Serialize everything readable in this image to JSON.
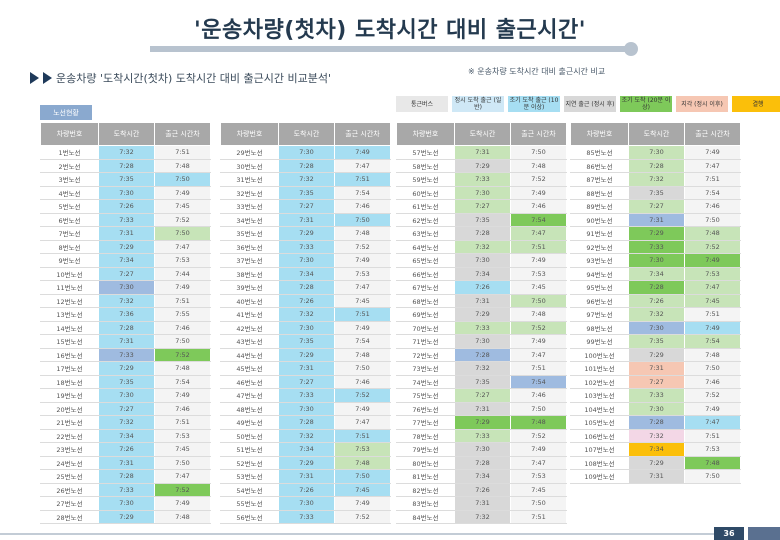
{
  "title": "'운송차량(첫차) 도착시간 대비 출근시간'",
  "subtitle": "운송차량 '도착시간(첫차) 도착시간 대비 출근시간 비교분석'",
  "note": "※ 운송차량 도착시간 대비 출근시간 비교",
  "section_tag": "노선현황",
  "legend": [
    {
      "label": "통근버스",
      "color": "#e8e8e8"
    },
    {
      "label": "정시 도착 출근 (일반)",
      "color": "#cfe8f6"
    },
    {
      "label": "조기 도착 출근 (10분 이상)",
      "color": "#a6def2"
    },
    {
      "label": "지연 출근 (정시 후)",
      "color": "#d8d8d8"
    },
    {
      "label": "조기 도착 (20분 이상)",
      "color": "#7ec95a"
    },
    {
      "label": "지각 (정시 이후)",
      "color": "#f6c7b3"
    },
    {
      "label": "결행",
      "color": "#fbbf0a"
    }
  ],
  "headers": [
    "차량번호",
    "도착시간",
    "출근 시간차"
  ],
  "tables": [
    {
      "rows": [
        [
          "1번노선",
          "7:32",
          "7:51"
        ],
        [
          "2번노선",
          "7:28",
          "7:48"
        ],
        [
          "3번노선",
          "7:35",
          "7:50"
        ],
        [
          "4번노선",
          "7:30",
          "7:49"
        ],
        [
          "5번노선",
          "7:26",
          "7:45"
        ],
        [
          "6번노선",
          "7:33",
          "7:52"
        ],
        [
          "7번노선",
          "7:31",
          "7:50"
        ],
        [
          "8번노선",
          "7:29",
          "7:47"
        ],
        [
          "9번노선",
          "7:34",
          "7:53"
        ],
        [
          "10번노선",
          "7:27",
          "7:44"
        ],
        [
          "11번노선",
          "7:30",
          "7:49"
        ],
        [
          "12번노선",
          "7:32",
          "7:51"
        ],
        [
          "13번노선",
          "7:36",
          "7:55"
        ],
        [
          "14번노선",
          "7:28",
          "7:46"
        ],
        [
          "15번노선",
          "7:31",
          "7:50"
        ],
        [
          "16번노선",
          "7:33",
          "7:52"
        ],
        [
          "17번노선",
          "7:29",
          "7:48"
        ],
        [
          "18번노선",
          "7:35",
          "7:54"
        ],
        [
          "19번노선",
          "7:30",
          "7:49"
        ],
        [
          "20번노선",
          "7:27",
          "7:46"
        ],
        [
          "21번노선",
          "7:32",
          "7:51"
        ],
        [
          "22번노선",
          "7:34",
          "7:53"
        ],
        [
          "23번노선",
          "7:26",
          "7:45"
        ],
        [
          "24번노선",
          "7:31",
          "7:50"
        ],
        [
          "25번노선",
          "7:28",
          "7:47"
        ],
        [
          "26번노선",
          "7:33",
          "7:52"
        ],
        [
          "27번노선",
          "7:30",
          "7:49"
        ],
        [
          "28번노선",
          "7:29",
          "7:48"
        ]
      ],
      "cls": [
        [
          "b",
          ""
        ],
        [
          "b",
          ""
        ],
        [
          "b",
          "b"
        ],
        [
          "b",
          ""
        ],
        [
          "b",
          ""
        ],
        [
          "b",
          ""
        ],
        [
          "b",
          "lgc"
        ],
        [
          "b",
          ""
        ],
        [
          "b",
          ""
        ],
        [
          "b",
          ""
        ],
        [
          "pb",
          ""
        ],
        [
          "b",
          ""
        ],
        [
          "b",
          ""
        ],
        [
          "b",
          ""
        ],
        [
          "b",
          ""
        ],
        [
          "pb",
          "dg"
        ],
        [
          "b",
          ""
        ],
        [
          "b",
          ""
        ],
        [
          "b",
          ""
        ],
        [
          "b",
          ""
        ],
        [
          "b",
          ""
        ],
        [
          "b",
          ""
        ],
        [
          "b",
          ""
        ],
        [
          "b",
          ""
        ],
        [
          "b",
          ""
        ],
        [
          "b",
          "dg"
        ],
        [
          "b",
          ""
        ],
        [
          "b",
          ""
        ]
      ]
    },
    {
      "rows": [
        [
          "29번노선",
          "7:30",
          "7:49"
        ],
        [
          "30번노선",
          "7:28",
          "7:47"
        ],
        [
          "31번노선",
          "7:32",
          "7:51"
        ],
        [
          "32번노선",
          "7:35",
          "7:54"
        ],
        [
          "33번노선",
          "7:27",
          "7:46"
        ],
        [
          "34번노선",
          "7:31",
          "7:50"
        ],
        [
          "35번노선",
          "7:29",
          "7:48"
        ],
        [
          "36번노선",
          "7:33",
          "7:52"
        ],
        [
          "37번노선",
          "7:30",
          "7:49"
        ],
        [
          "38번노선",
          "7:34",
          "7:53"
        ],
        [
          "39번노선",
          "7:28",
          "7:47"
        ],
        [
          "40번노선",
          "7:26",
          "7:45"
        ],
        [
          "41번노선",
          "7:32",
          "7:51"
        ],
        [
          "42번노선",
          "7:30",
          "7:49"
        ],
        [
          "43번노선",
          "7:35",
          "7:54"
        ],
        [
          "44번노선",
          "7:29",
          "7:48"
        ],
        [
          "45번노선",
          "7:31",
          "7:50"
        ],
        [
          "46번노선",
          "7:27",
          "7:46"
        ],
        [
          "47번노선",
          "7:33",
          "7:52"
        ],
        [
          "48번노선",
          "7:30",
          "7:49"
        ],
        [
          "49번노선",
          "7:28",
          "7:47"
        ],
        [
          "50번노선",
          "7:32",
          "7:51"
        ],
        [
          "51번노선",
          "7:34",
          "7:53"
        ],
        [
          "52번노선",
          "7:29",
          "7:48"
        ],
        [
          "53번노선",
          "7:31",
          "7:50"
        ],
        [
          "54번노선",
          "7:26",
          "7:45"
        ],
        [
          "55번노선",
          "7:30",
          "7:49"
        ],
        [
          "56번노선",
          "7:33",
          "7:52"
        ]
      ],
      "cls": [
        [
          "b",
          "b"
        ],
        [
          "b",
          ""
        ],
        [
          "b",
          "b"
        ],
        [
          "b",
          ""
        ],
        [
          "b",
          ""
        ],
        [
          "b",
          "b"
        ],
        [
          "b",
          ""
        ],
        [
          "b",
          ""
        ],
        [
          "b",
          ""
        ],
        [
          "b",
          ""
        ],
        [
          "b",
          ""
        ],
        [
          "b",
          ""
        ],
        [
          "b",
          "b"
        ],
        [
          "b",
          ""
        ],
        [
          "b",
          ""
        ],
        [
          "b",
          ""
        ],
        [
          "b",
          ""
        ],
        [
          "b",
          ""
        ],
        [
          "b",
          "b"
        ],
        [
          "b",
          ""
        ],
        [
          "b",
          ""
        ],
        [
          "b",
          "b"
        ],
        [
          "b",
          "lgc"
        ],
        [
          "b",
          "lgc"
        ],
        [
          "b",
          "b"
        ],
        [
          "b",
          "b"
        ],
        [
          "b",
          ""
        ],
        [
          "b",
          ""
        ]
      ]
    },
    {
      "rows": [
        [
          "57번노선",
          "7:31",
          "7:50"
        ],
        [
          "58번노선",
          "7:29",
          "7:48"
        ],
        [
          "59번노선",
          "7:33",
          "7:52"
        ],
        [
          "60번노선",
          "7:30",
          "7:49"
        ],
        [
          "61번노선",
          "7:27",
          "7:46"
        ],
        [
          "62번노선",
          "7:35",
          "7:54"
        ],
        [
          "63번노선",
          "7:28",
          "7:47"
        ],
        [
          "64번노선",
          "7:32",
          "7:51"
        ],
        [
          "65번노선",
          "7:30",
          "7:49"
        ],
        [
          "66번노선",
          "7:34",
          "7:53"
        ],
        [
          "67번노선",
          "7:26",
          "7:45"
        ],
        [
          "68번노선",
          "7:31",
          "7:50"
        ],
        [
          "69번노선",
          "7:29",
          "7:48"
        ],
        [
          "70번노선",
          "7:33",
          "7:52"
        ],
        [
          "71번노선",
          "7:30",
          "7:49"
        ],
        [
          "72번노선",
          "7:28",
          "7:47"
        ],
        [
          "73번노선",
          "7:32",
          "7:51"
        ],
        [
          "74번노선",
          "7:35",
          "7:54"
        ],
        [
          "75번노선",
          "7:27",
          "7:46"
        ],
        [
          "76번노선",
          "7:31",
          "7:50"
        ],
        [
          "77번노선",
          "7:29",
          "7:48"
        ],
        [
          "78번노선",
          "7:33",
          "7:52"
        ],
        [
          "79번노선",
          "7:30",
          "7:49"
        ],
        [
          "80번노선",
          "7:28",
          "7:47"
        ],
        [
          "81번노선",
          "7:34",
          "7:53"
        ],
        [
          "82번노선",
          "7:26",
          "7:45"
        ],
        [
          "83번노선",
          "7:31",
          "7:50"
        ],
        [
          "84번노선",
          "7:32",
          "7:51"
        ]
      ],
      "cls": [
        [
          "lgc",
          ""
        ],
        [
          "g",
          ""
        ],
        [
          "lgc",
          ""
        ],
        [
          "lgc",
          ""
        ],
        [
          "lgc",
          ""
        ],
        [
          "g",
          "dg"
        ],
        [
          "g",
          "lgc"
        ],
        [
          "lgc",
          "lgc"
        ],
        [
          "g",
          ""
        ],
        [
          "g",
          ""
        ],
        [
          "b",
          ""
        ],
        [
          "g",
          "lgc"
        ],
        [
          "g",
          ""
        ],
        [
          "lgc",
          "lgc"
        ],
        [
          "g",
          ""
        ],
        [
          "pb",
          ""
        ],
        [
          "g",
          ""
        ],
        [
          "g",
          "pb"
        ],
        [
          "lgc",
          ""
        ],
        [
          "g",
          ""
        ],
        [
          "dg",
          "dg"
        ],
        [
          "lgc",
          ""
        ],
        [
          "g",
          ""
        ],
        [
          "g",
          ""
        ],
        [
          "g",
          ""
        ],
        [
          "g",
          ""
        ],
        [
          "g",
          ""
        ],
        [
          "g",
          ""
        ]
      ]
    },
    {
      "rows": [
        [
          "85번노선",
          "7:30",
          "7:49"
        ],
        [
          "86번노선",
          "7:28",
          "7:47"
        ],
        [
          "87번노선",
          "7:32",
          "7:51"
        ],
        [
          "88번노선",
          "7:35",
          "7:54"
        ],
        [
          "89번노선",
          "7:27",
          "7:46"
        ],
        [
          "90번노선",
          "7:31",
          "7:50"
        ],
        [
          "91번노선",
          "7:29",
          "7:48"
        ],
        [
          "92번노선",
          "7:33",
          "7:52"
        ],
        [
          "93번노선",
          "7:30",
          "7:49"
        ],
        [
          "94번노선",
          "7:34",
          "7:53"
        ],
        [
          "95번노선",
          "7:28",
          "7:47"
        ],
        [
          "96번노선",
          "7:26",
          "7:45"
        ],
        [
          "97번노선",
          "7:32",
          "7:51"
        ],
        [
          "98번노선",
          "7:30",
          "7:49"
        ],
        [
          "99번노선",
          "7:35",
          "7:54"
        ],
        [
          "100번노선",
          "7:29",
          "7:48"
        ],
        [
          "101번노선",
          "7:31",
          "7:50"
        ],
        [
          "102번노선",
          "7:27",
          "7:46"
        ],
        [
          "103번노선",
          "7:33",
          "7:52"
        ],
        [
          "104번노선",
          "7:30",
          "7:49"
        ],
        [
          "105번노선",
          "7:28",
          "7:47"
        ],
        [
          "106번노선",
          "7:32",
          "7:51"
        ],
        [
          "107번노선",
          "7:34",
          "7:53"
        ],
        [
          "108번노선",
          "7:29",
          "7:48"
        ],
        [
          "109번노선",
          "7:31",
          "7:50"
        ]
      ],
      "cls": [
        [
          "lgc",
          ""
        ],
        [
          "lgc",
          ""
        ],
        [
          "lgc",
          ""
        ],
        [
          "g",
          ""
        ],
        [
          "lgc",
          ""
        ],
        [
          "pb",
          ""
        ],
        [
          "dg",
          "lgc"
        ],
        [
          "dg",
          "lgc"
        ],
        [
          "dg",
          "dg"
        ],
        [
          "lgc",
          "lgc"
        ],
        [
          "dg",
          "lgc"
        ],
        [
          "lgc",
          "lgc"
        ],
        [
          "lgc",
          ""
        ],
        [
          "pb",
          "b"
        ],
        [
          "lgc",
          "lgc"
        ],
        [
          "g",
          ""
        ],
        [
          "pk",
          ""
        ],
        [
          "pk",
          ""
        ],
        [
          "lgc",
          ""
        ],
        [
          "lgc",
          ""
        ],
        [
          "pb",
          "b"
        ],
        [
          "lp",
          ""
        ],
        [
          "or",
          ""
        ],
        [
          "g",
          "dg"
        ],
        [
          "g",
          ""
        ]
      ]
    }
  ],
  "page_number": "36"
}
